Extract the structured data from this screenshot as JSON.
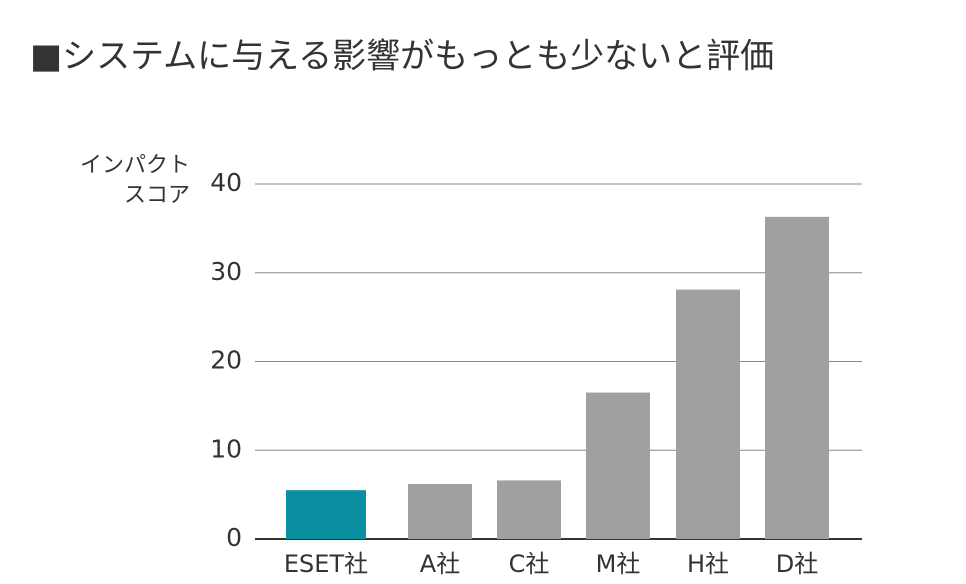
{
  "chart_data": {
    "type": "bar",
    "title": "■システムに与える影響がもっとも少ないと評価",
    "y_label": [
      "インパクト",
      "スコア"
    ],
    "categories": [
      "ESET社",
      "A社",
      "C社",
      "M社",
      "H社",
      "D社"
    ],
    "values": [
      5.5,
      6.2,
      6.6,
      16.5,
      28.1,
      36.3
    ],
    "colors": [
      "#0a8fa0",
      "#a0a0a0",
      "#a0a0a0",
      "#a0a0a0",
      "#a0a0a0",
      "#a0a0a0"
    ],
    "ylim": [
      0,
      40
    ],
    "yticks": [
      0,
      10,
      20,
      30,
      40
    ],
    "grid": true
  }
}
